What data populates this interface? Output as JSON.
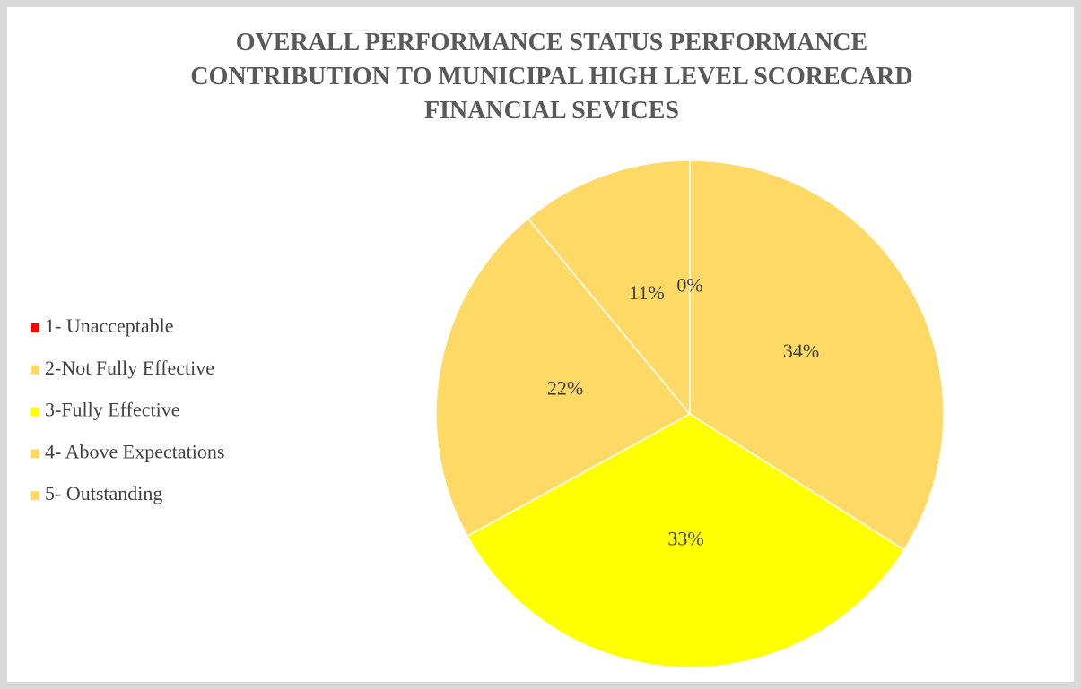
{
  "chart_data": {
    "type": "pie",
    "title": "OVERALL PERFORMANCE STATUS PERFORMANCE\nCONTRIBUTION TO MUNICIPAL HIGH LEVEL SCORECARD\nFINANCIAL SEVICES",
    "categories": [
      "1- Unacceptable",
      "2-Not Fully Effective",
      "3-Fully Effective",
      "4- Above Expectations",
      "5- Outstanding"
    ],
    "values": [
      0,
      34,
      33,
      22,
      11
    ],
    "value_labels": [
      "0%",
      "34%",
      "33%",
      "22%",
      "11%"
    ],
    "colors": [
      "#ff0000",
      "#ffd966",
      "#ffff00",
      "#ffd966",
      "#ffd966"
    ],
    "legend": "left"
  }
}
